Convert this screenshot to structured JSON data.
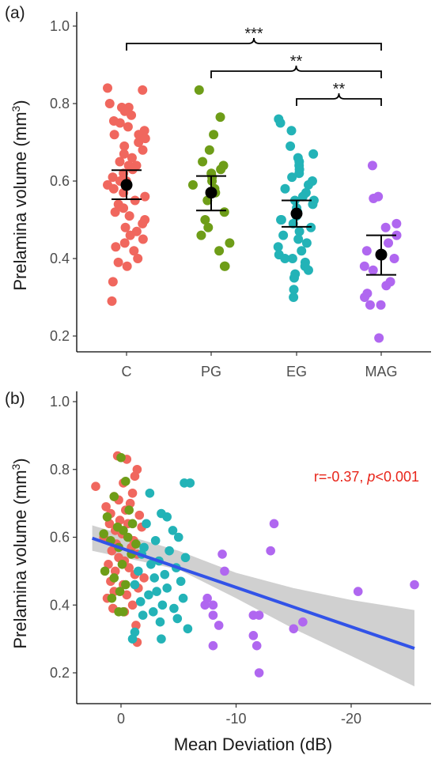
{
  "colors": {
    "C": "#F0675E",
    "PG": "#6E9D18",
    "EG": "#23B3B7",
    "MAG": "#B067F0",
    "mean": "#000000",
    "fit_line": "#3253E8",
    "ci_band": "#C8C8C8",
    "annotation": "#E8251A"
  },
  "chart_data": [
    {
      "type": "scatter",
      "panel_label": "(a)",
      "ylabel": "Prelamina volume (mm",
      "ylabel_sup": "3",
      "ylabel_close": ")",
      "ylim": [
        0.17,
        1.04
      ],
      "yticks": [
        0.2,
        0.4,
        0.6,
        0.8,
        1.0
      ],
      "ytick_labels": [
        "0.2",
        "0.4",
        "0.6",
        "0.8",
        "1.0"
      ],
      "grid": false,
      "categories": [
        "C",
        "PG",
        "EG",
        "MAG"
      ],
      "summary": [
        {
          "group": "C",
          "mean": 0.59,
          "lower": 0.553,
          "upper": 0.628
        },
        {
          "group": "PG",
          "mean": 0.57,
          "lower": 0.524,
          "upper": 0.613
        },
        {
          "group": "EG",
          "mean": 0.516,
          "lower": 0.482,
          "upper": 0.55
        },
        {
          "group": "MAG",
          "mean": 0.41,
          "lower": 0.358,
          "upper": 0.46
        }
      ],
      "points": {
        "C": [
          0.84,
          0.835,
          0.8,
          0.79,
          0.79,
          0.78,
          0.77,
          0.755,
          0.75,
          0.74,
          0.73,
          0.72,
          0.72,
          0.71,
          0.7,
          0.69,
          0.68,
          0.67,
          0.66,
          0.65,
          0.64,
          0.64,
          0.63,
          0.62,
          0.61,
          0.6,
          0.6,
          0.59,
          0.58,
          0.57,
          0.56,
          0.55,
          0.54,
          0.53,
          0.52,
          0.51,
          0.5,
          0.49,
          0.48,
          0.47,
          0.46,
          0.45,
          0.44,
          0.43,
          0.42,
          0.4,
          0.39,
          0.38,
          0.34,
          0.29
        ],
        "PG": [
          0.835,
          0.765,
          0.72,
          0.68,
          0.65,
          0.64,
          0.63,
          0.62,
          0.61,
          0.6,
          0.59,
          0.58,
          0.57,
          0.55,
          0.52,
          0.5,
          0.48,
          0.46,
          0.44,
          0.42,
          0.38,
          0.38
        ],
        "EG": [
          0.76,
          0.75,
          0.73,
          0.69,
          0.67,
          0.66,
          0.65,
          0.64,
          0.63,
          0.62,
          0.61,
          0.6,
          0.59,
          0.58,
          0.57,
          0.56,
          0.55,
          0.55,
          0.54,
          0.53,
          0.52,
          0.51,
          0.5,
          0.5,
          0.49,
          0.48,
          0.47,
          0.46,
          0.45,
          0.44,
          0.43,
          0.42,
          0.41,
          0.4,
          0.4,
          0.39,
          0.38,
          0.37,
          0.36,
          0.35,
          0.32,
          0.3
        ],
        "MAG": [
          0.64,
          0.56,
          0.555,
          0.49,
          0.48,
          0.46,
          0.44,
          0.42,
          0.4,
          0.38,
          0.37,
          0.34,
          0.33,
          0.31,
          0.3,
          0.28,
          0.28,
          0.195
        ]
      },
      "significance": [
        {
          "from": "C",
          "to": "MAG",
          "label": "***"
        },
        {
          "from": "PG",
          "to": "MAG",
          "label": "**"
        },
        {
          "from": "EG",
          "to": "MAG",
          "label": "**"
        }
      ]
    },
    {
      "type": "scatter",
      "panel_label": "(b)",
      "ylabel": "Prelamina volume (mm",
      "ylabel_sup": "3",
      "ylabel_close": ")",
      "xlabel": "Mean Deviation (dB)",
      "ylim": [
        0.14,
        1.04
      ],
      "yticks": [
        0.2,
        0.4,
        0.6,
        0.8,
        1.0
      ],
      "ytick_labels": [
        "0.2",
        "0.4",
        "0.6",
        "0.8",
        "1.0"
      ],
      "xlim": [
        3,
        -27
      ],
      "xticks": [
        0,
        -10,
        -20
      ],
      "xtick_labels": [
        "0",
        "-10",
        "-20"
      ],
      "x_reversed": true,
      "grid": false,
      "annotation": {
        "r_text": "r=-0.37, ",
        "p_italic": "p",
        "p_rest": "<0.001"
      },
      "regression": {
        "line": [
          [
            2.5,
            0.597
          ],
          [
            -25.5,
            0.272
          ]
        ],
        "ci_upper": [
          [
            2.5,
            0.635
          ],
          [
            -5,
            0.56
          ],
          [
            -10,
            0.495
          ],
          [
            -15,
            0.45
          ],
          [
            -20,
            0.415
          ],
          [
            -25.5,
            0.385
          ]
        ],
        "ci_lower": [
          [
            2.5,
            0.56
          ],
          [
            -5,
            0.505
          ],
          [
            -10,
            0.42
          ],
          [
            -15,
            0.33
          ],
          [
            -20,
            0.25
          ],
          [
            -25.5,
            0.16
          ]
        ]
      },
      "series": [
        {
          "group": "C",
          "points": [
            [
              2.2,
              0.75
            ],
            [
              0.3,
              0.84
            ],
            [
              -0.5,
              0.83
            ],
            [
              -1.4,
              0.8
            ],
            [
              -1.2,
              0.78
            ],
            [
              -0.2,
              0.76
            ],
            [
              -1.0,
              0.73
            ],
            [
              0.6,
              0.72
            ],
            [
              0.2,
              0.71
            ],
            [
              -0.8,
              0.7
            ],
            [
              1.3,
              0.69
            ],
            [
              -0.4,
              0.68
            ],
            [
              0.9,
              0.67
            ],
            [
              -1.6,
              0.665
            ],
            [
              0.1,
              0.65
            ],
            [
              -0.6,
              0.64
            ],
            [
              1.0,
              0.64
            ],
            [
              -1.8,
              0.63
            ],
            [
              0.5,
              0.62
            ],
            [
              -0.1,
              0.61
            ],
            [
              1.5,
              0.6
            ],
            [
              -1.1,
              0.59
            ],
            [
              0.4,
              0.58
            ],
            [
              -0.9,
              0.57
            ],
            [
              0.8,
              0.56
            ],
            [
              -1.4,
              0.55
            ],
            [
              0.2,
              0.54
            ],
            [
              -0.3,
              0.53
            ],
            [
              1.1,
              0.52
            ],
            [
              -0.7,
              0.51
            ],
            [
              0.5,
              0.5
            ],
            [
              -1.2,
              0.49
            ],
            [
              -2.0,
              0.48
            ],
            [
              0.9,
              0.47
            ],
            [
              -0.2,
              0.46
            ],
            [
              -1.5,
              0.45
            ],
            [
              0.6,
              0.44
            ],
            [
              -0.5,
              0.43
            ],
            [
              1.2,
              0.42
            ],
            [
              -1.0,
              0.4
            ],
            [
              0.7,
              0.39
            ],
            [
              -0.3,
              0.38
            ],
            [
              -1.3,
              0.34
            ],
            [
              -1.4,
              0.29
            ]
          ]
        },
        {
          "group": "PG",
          "points": [
            [
              0.0,
              0.835
            ],
            [
              -0.4,
              0.765
            ],
            [
              0.6,
              0.72
            ],
            [
              -0.7,
              0.68
            ],
            [
              1.2,
              0.66
            ],
            [
              -1.0,
              0.64
            ],
            [
              0.3,
              0.63
            ],
            [
              -0.2,
              0.62
            ],
            [
              1.5,
              0.61
            ],
            [
              -0.6,
              0.6
            ],
            [
              0.9,
              0.59
            ],
            [
              -1.3,
              0.58
            ],
            [
              0.2,
              0.57
            ],
            [
              -0.9,
              0.55
            ],
            [
              1.4,
              0.5
            ],
            [
              -0.1,
              0.52
            ],
            [
              0.6,
              0.48
            ],
            [
              -0.4,
              0.46
            ],
            [
              0.1,
              0.44
            ],
            [
              0.8,
              0.42
            ],
            [
              -0.2,
              0.38
            ],
            [
              0.2,
              0.38
            ]
          ]
        },
        {
          "group": "EG",
          "points": [
            [
              -2.5,
              0.73
            ],
            [
              -5.5,
              0.76
            ],
            [
              -6.0,
              0.76
            ],
            [
              -4.0,
              0.66
            ],
            [
              -3.5,
              0.67
            ],
            [
              -2.2,
              0.64
            ],
            [
              -4.5,
              0.62
            ],
            [
              -5.0,
              0.6
            ],
            [
              -3.0,
              0.59
            ],
            [
              -2.0,
              0.57
            ],
            [
              -4.2,
              0.56
            ],
            [
              -1.8,
              0.55
            ],
            [
              -5.6,
              0.54
            ],
            [
              -3.3,
              0.53
            ],
            [
              -2.6,
              0.52
            ],
            [
              -4.8,
              0.51
            ],
            [
              -1.5,
              0.5
            ],
            [
              -3.8,
              0.49
            ],
            [
              -2.9,
              0.48
            ],
            [
              -5.2,
              0.47
            ],
            [
              -1.2,
              0.46
            ],
            [
              -4.0,
              0.45
            ],
            [
              -3.1,
              0.44
            ],
            [
              -2.4,
              0.43
            ],
            [
              -5.4,
              0.42
            ],
            [
              -1.7,
              0.41
            ],
            [
              -3.6,
              0.4
            ],
            [
              -4.6,
              0.39
            ],
            [
              -2.8,
              0.38
            ],
            [
              -1.9,
              0.37
            ],
            [
              -4.9,
              0.36
            ],
            [
              -3.4,
              0.35
            ],
            [
              -1.2,
              0.32
            ],
            [
              -1.0,
              0.3
            ],
            [
              -3.5,
              0.3
            ],
            [
              -5.8,
              0.33
            ]
          ]
        },
        {
          "group": "MAG",
          "points": [
            [
              -13.3,
              0.64
            ],
            [
              -13.0,
              0.56
            ],
            [
              -7.3,
              0.4
            ],
            [
              -8.8,
              0.55
            ],
            [
              -9.0,
              0.5
            ],
            [
              -8.0,
              0.4
            ],
            [
              -7.5,
              0.42
            ],
            [
              -8.0,
              0.37
            ],
            [
              -8.5,
              0.34
            ],
            [
              -11.5,
              0.37
            ],
            [
              -12.0,
              0.37
            ],
            [
              -11.5,
              0.31
            ],
            [
              -11.8,
              0.28
            ],
            [
              -15.0,
              0.33
            ],
            [
              -15.8,
              0.35
            ],
            [
              -20.6,
              0.44
            ],
            [
              -25.5,
              0.46
            ],
            [
              -8.0,
              0.28
            ],
            [
              -12.0,
              0.2
            ]
          ]
        }
      ]
    }
  ]
}
